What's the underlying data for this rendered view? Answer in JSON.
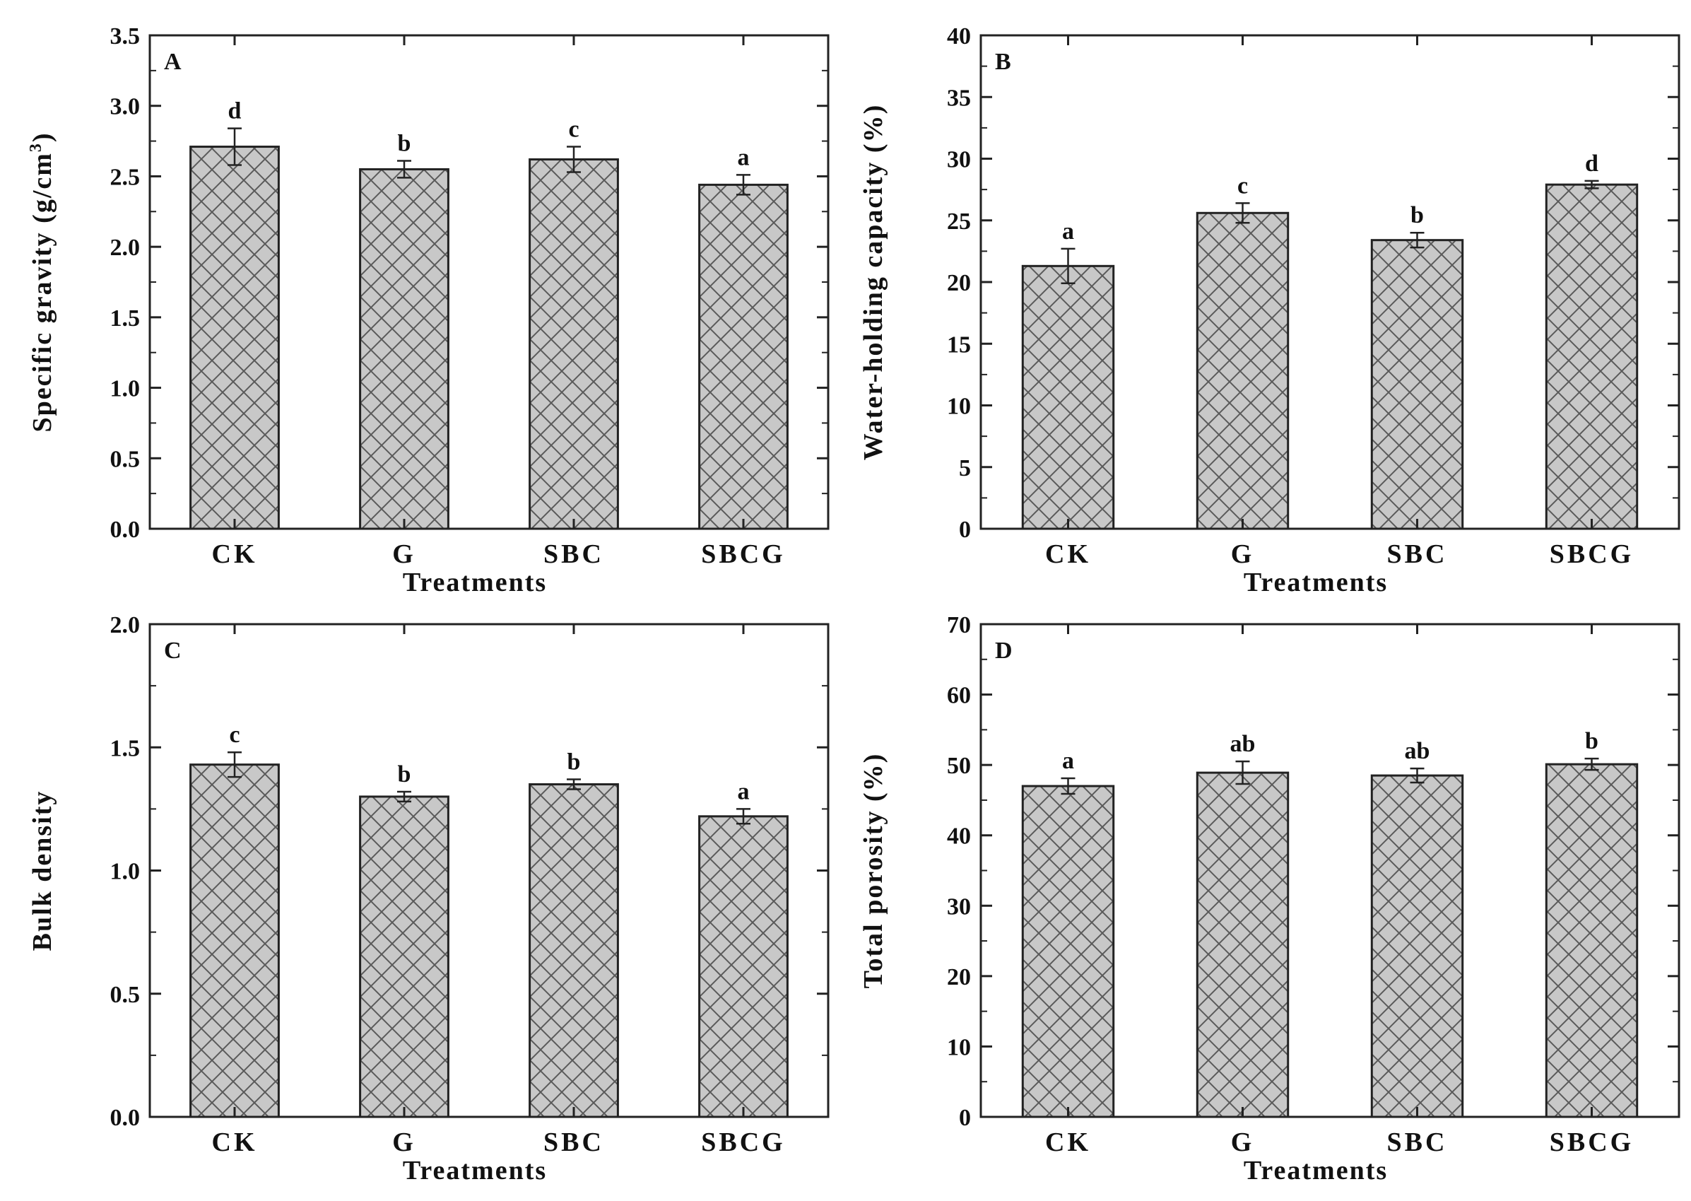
{
  "figure": {
    "colors": {
      "bar_fill": "#c8c8c8",
      "hatch": "#5a5a5a",
      "axis": "#222222"
    }
  },
  "chart_data": [
    {
      "type": "bar",
      "panel": "A",
      "categories": [
        "CK",
        "G",
        "SBC",
        "SBCG"
      ],
      "values": [
        2.71,
        2.55,
        2.62,
        2.44
      ],
      "errors": [
        0.13,
        0.06,
        0.09,
        0.07
      ],
      "significance": [
        "d",
        "b",
        "c",
        "a"
      ],
      "xlabel": "Treatments",
      "ylabel": "Specific gravity (g/cm",
      "ylabel_sup": "3",
      "ylabel_end": ")",
      "ylim": [
        0,
        3.5
      ],
      "ticks": [
        "0.0",
        "0.5",
        "1.0",
        "1.5",
        "2.0",
        "2.5",
        "3.0",
        "3.5"
      ],
      "tick_values": [
        0,
        0.5,
        1.0,
        1.5,
        2.0,
        2.5,
        3.0,
        3.5
      ]
    },
    {
      "type": "bar",
      "panel": "B",
      "categories": [
        "CK",
        "G",
        "SBC",
        "SBCG"
      ],
      "values": [
        21.3,
        25.6,
        23.4,
        27.9
      ],
      "errors": [
        1.4,
        0.8,
        0.6,
        0.3
      ],
      "significance": [
        "a",
        "c",
        "b",
        "d"
      ],
      "xlabel": "Treatments",
      "ylabel": "Water-holding capacity (%)",
      "ylim": [
        0,
        40
      ],
      "ticks": [
        "0",
        "5",
        "10",
        "15",
        "20",
        "25",
        "30",
        "35",
        "40"
      ],
      "tick_values": [
        0,
        5,
        10,
        15,
        20,
        25,
        30,
        35,
        40
      ]
    },
    {
      "type": "bar",
      "panel": "C",
      "categories": [
        "CK",
        "G",
        "SBC",
        "SBCG"
      ],
      "values": [
        1.43,
        1.3,
        1.35,
        1.22
      ],
      "errors": [
        0.05,
        0.02,
        0.02,
        0.03
      ],
      "significance": [
        "c",
        "b",
        "b",
        "a"
      ],
      "xlabel": "Treatments",
      "ylabel": "Bulk density",
      "ylim": [
        0,
        2.0
      ],
      "ticks": [
        "0.0",
        "0.5",
        "1.0",
        "1.5",
        "2.0"
      ],
      "tick_values": [
        0,
        0.5,
        1.0,
        1.5,
        2.0
      ]
    },
    {
      "type": "bar",
      "panel": "D",
      "categories": [
        "CK",
        "G",
        "SBC",
        "SBCG"
      ],
      "values": [
        47.0,
        48.9,
        48.5,
        50.1
      ],
      "errors": [
        1.1,
        1.6,
        1.0,
        0.8
      ],
      "significance": [
        "a",
        "ab",
        "ab",
        "b"
      ],
      "xlabel": "Treatments",
      "ylabel": "Total porosity (%)",
      "ylim": [
        0,
        70
      ],
      "ticks": [
        "0",
        "10",
        "20",
        "30",
        "40",
        "50",
        "60",
        "70"
      ],
      "tick_values": [
        0,
        10,
        20,
        30,
        40,
        50,
        60,
        70
      ]
    }
  ]
}
